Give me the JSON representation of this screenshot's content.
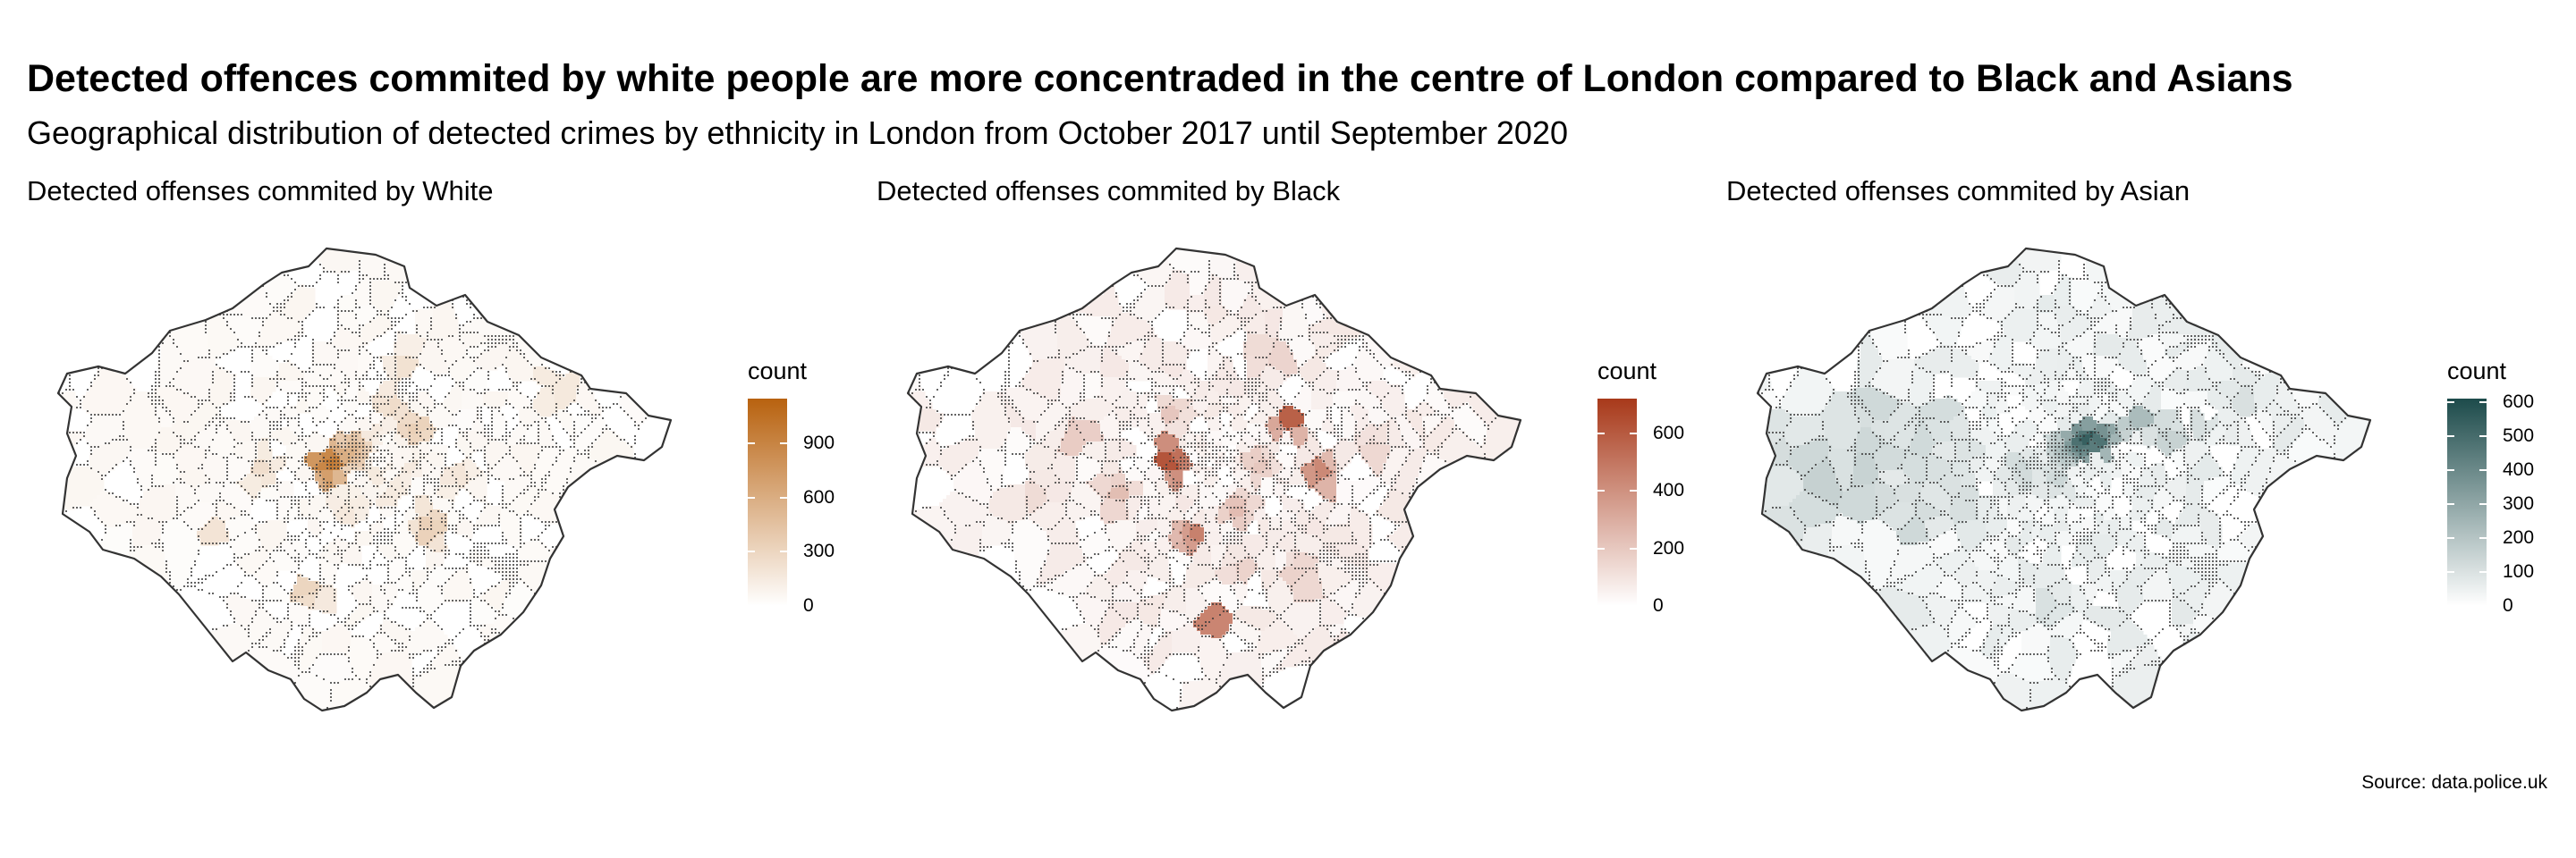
{
  "title": "Detected offences commited by white people are more concentraded in the centre of London compared to Black and Asians",
  "subtitle": "Geographical distribution of detected crimes by ethnicity in London from October 2017 until September 2020",
  "source": "Source: data.police.uk",
  "panels": [
    {
      "title": "Detected offenses commited by White",
      "legend": {
        "title": "count",
        "ticks": [
          "0",
          "300",
          "600",
          "900"
        ],
        "tick_values": [
          0,
          300,
          600,
          900
        ],
        "max": 1150,
        "color_low": "#ffffff",
        "color_high": "#b8620f"
      }
    },
    {
      "title": "Detected offenses commited by Black",
      "legend": {
        "title": "count",
        "ticks": [
          "0",
          "200",
          "400",
          "600"
        ],
        "tick_values": [
          0,
          200,
          400,
          600
        ],
        "max": 720,
        "color_low": "#ffffff",
        "color_high": "#a8391a"
      }
    },
    {
      "title": "Detected offenses commited by Asian",
      "legend": {
        "title": "count",
        "ticks": [
          "0",
          "100",
          "200",
          "300",
          "400",
          "500",
          "600"
        ],
        "tick_values": [
          0,
          100,
          200,
          300,
          400,
          500,
          600
        ],
        "max": 610,
        "color_low": "#ffffff",
        "color_high": "#1d4b4b"
      }
    }
  ]
}
